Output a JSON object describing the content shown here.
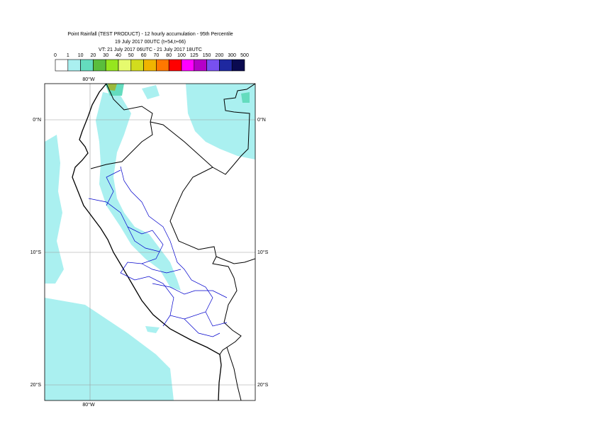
{
  "title": {
    "lines": [
      "Point Rainfall (TEST PRODUCT) - 12 hourly accumulation - 95th Percentile",
      "19 July 2017 00UTC (t+54,t+66)",
      "VT: 21 July 2017 06UTC - 21 July 2017 18UTC"
    ]
  },
  "legend": {
    "ticks": [
      0,
      1,
      10,
      20,
      30,
      40,
      50,
      60,
      70,
      80,
      100,
      125,
      150,
      200,
      300,
      500
    ],
    "colors": [
      "#ffffff",
      "#aaf0f0",
      "#64dcbe",
      "#5abe3c",
      "#96e61e",
      "#e6fa6e",
      "#d2dc1e",
      "#f0b400",
      "#ff7800",
      "#ff0000",
      "#ff00ff",
      "#b400c8",
      "#7850f0",
      "#1e28a0",
      "#0a0a50"
    ]
  },
  "map": {
    "lon_labels": [
      "80°W",
      "80°W"
    ],
    "lat_labels": [
      "0°N",
      "10°S",
      "20°S"
    ]
  }
}
